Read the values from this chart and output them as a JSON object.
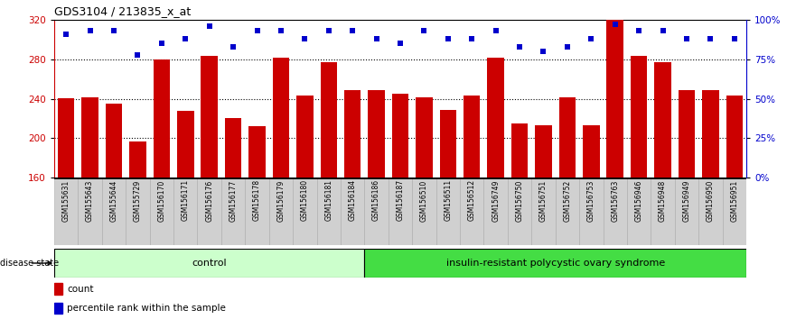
{
  "title": "GDS3104 / 213835_x_at",
  "categories": [
    "GSM155631",
    "GSM155643",
    "GSM155644",
    "GSM155729",
    "GSM156170",
    "GSM156171",
    "GSM156176",
    "GSM156177",
    "GSM156178",
    "GSM156179",
    "GSM156180",
    "GSM156181",
    "GSM156184",
    "GSM156186",
    "GSM156187",
    "GSM156510",
    "GSM156511",
    "GSM156512",
    "GSM156749",
    "GSM156750",
    "GSM156751",
    "GSM156752",
    "GSM156753",
    "GSM156763",
    "GSM156946",
    "GSM156948",
    "GSM156949",
    "GSM156950",
    "GSM156951"
  ],
  "bar_values": [
    240,
    241,
    235,
    197,
    280,
    228,
    283,
    220,
    212,
    282,
    243,
    277,
    249,
    249,
    245,
    241,
    229,
    243,
    282,
    215,
    213,
    241,
    213,
    320,
    283,
    277,
    249,
    249,
    243
  ],
  "dot_values": [
    91,
    93,
    93,
    78,
    85,
    88,
    96,
    83,
    93,
    93,
    88,
    93,
    93,
    88,
    85,
    93,
    88,
    88,
    93,
    83,
    80,
    83,
    88,
    97,
    93,
    93,
    88,
    88,
    88
  ],
  "control_count": 13,
  "bar_color": "#cc0000",
  "dot_color": "#0000cc",
  "ylim_left": [
    160,
    320
  ],
  "ylim_right": [
    0,
    100
  ],
  "yticks_left": [
    160,
    200,
    240,
    280,
    320
  ],
  "yticks_right": [
    0,
    25,
    50,
    75,
    100
  ],
  "ytick_labels_right": [
    "0%",
    "25%",
    "50%",
    "75%",
    "100%"
  ],
  "control_label": "control",
  "disease_label": "insulin-resistant polycystic ovary syndrome",
  "disease_state_label": "disease state",
  "legend_count": "count",
  "legend_percentile": "percentile rank within the sample",
  "control_color": "#ccffcc",
  "disease_color": "#44dd44",
  "xtick_bg": "#d0d0d0",
  "plot_bg_color": "#ffffff",
  "hgrid_values": [
    200,
    240,
    280
  ]
}
